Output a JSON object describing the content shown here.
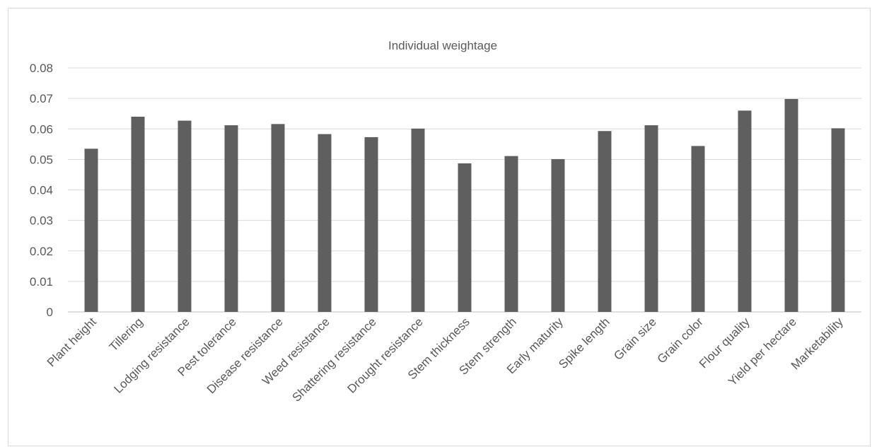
{
  "chart_data": {
    "type": "bar",
    "title": "Individual weightage",
    "xlabel": "",
    "ylabel": "",
    "ylim": [
      0,
      0.08
    ],
    "yticks": [
      "0",
      "0.01",
      "0.02",
      "0.03",
      "0.04",
      "0.05",
      "0.06",
      "0.07",
      "0.08"
    ],
    "grid": true,
    "legend": "none",
    "bar_color": "#5f5f5f",
    "categories": [
      "Plant height",
      "Tillering",
      "Lodging resistance",
      "Pest tolerance",
      "Disease resistance",
      "Weed resistance",
      "Shattering resistance",
      "Drought resistance",
      "Stem thickness",
      "Stem strength",
      "Early maturity",
      "Spike length",
      "Grain size",
      "Grain color",
      "Flour quality",
      "Yield per hectare",
      "Marketability"
    ],
    "values": [
      0.0535,
      0.064,
      0.0627,
      0.0612,
      0.0616,
      0.0583,
      0.0573,
      0.0601,
      0.0487,
      0.0511,
      0.0501,
      0.0593,
      0.0612,
      0.0544,
      0.066,
      0.0698,
      0.0602
    ]
  }
}
